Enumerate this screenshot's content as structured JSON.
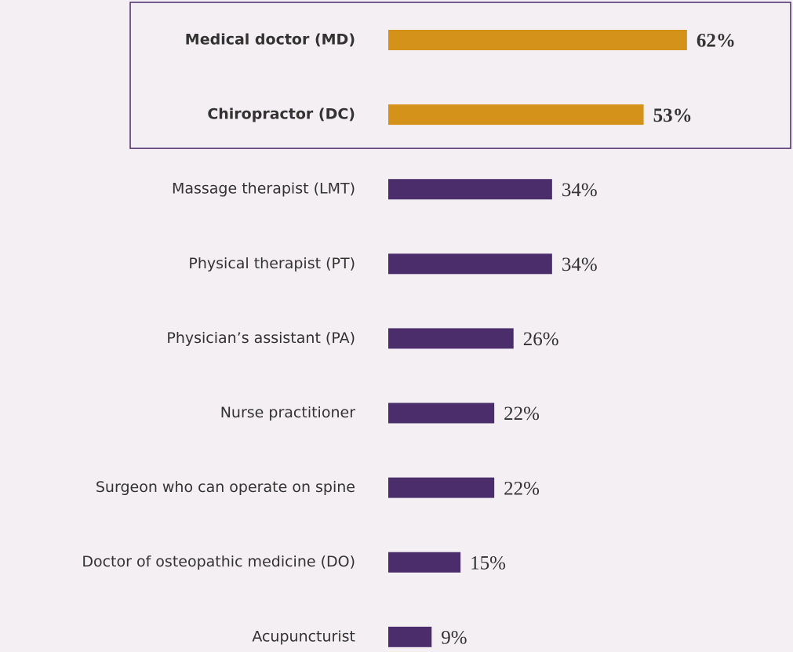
{
  "chart_data": {
    "type": "barh",
    "categories": [
      "Medical doctor (MD)",
      "Chiropractor (DC)",
      "Massage therapist (LMT)",
      "Physical therapist (PT)",
      "Physician’s assistant (PA)",
      "Nurse practitioner",
      "Surgeon who can operate on spine",
      "Doctor of osteopathic medicine (DO)",
      "Acupuncturist"
    ],
    "values": [
      62,
      53,
      34,
      34,
      26,
      22,
      22,
      15,
      9
    ],
    "value_labels": [
      "62%",
      "53%",
      "34%",
      "34%",
      "26%",
      "22%",
      "22%",
      "15%",
      "9%"
    ],
    "colors": [
      "#d4921a",
      "#d4921a",
      "#4b2d6b",
      "#4b2d6b",
      "#4b2d6b",
      "#4b2d6b",
      "#4b2d6b",
      "#4b2d6b",
      "#4b2d6b"
    ],
    "highlight_color": "#d4921a",
    "xlim": [
      0,
      84
    ]
  }
}
